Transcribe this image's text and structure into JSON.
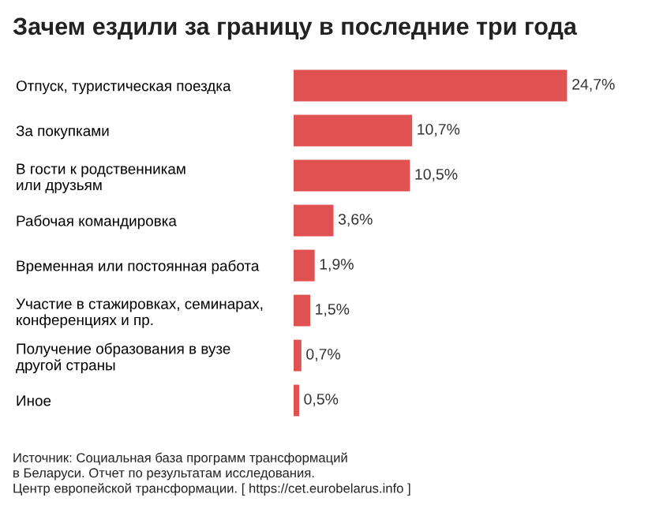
{
  "chart_data": {
    "type": "bar",
    "orientation": "horizontal",
    "title": "Зачем ездили за границу в последние три года",
    "categories": [
      "Отпуск, туристическая поездка",
      "За покупками",
      "В гости к родственникам\nили друзьям",
      "Рабочая командировка",
      "Временная или постоянная работа",
      "Участие в стажировках, семинарах,\nконференциях и пр.",
      "Получение образования в вузе\nдругой страны",
      "Иное"
    ],
    "values": [
      24.7,
      10.7,
      10.5,
      3.6,
      1.9,
      1.5,
      0.7,
      0.5
    ],
    "value_labels": [
      "24,7%",
      "10,7%",
      "10,5%",
      "3,6%",
      "1,9%",
      "1,5%",
      "0,7%",
      "0,5%"
    ],
    "color": "#e05252",
    "tick_labels": "y",
    "grid": false,
    "legend": false,
    "annotations": [
      "Источник: Социальная база программ трансформаций\nв Беларуси. Отчет по результатам исследования.\nЦентр европейской трансформации. [ https://cet.eurobelarus.info ]"
    ]
  }
}
